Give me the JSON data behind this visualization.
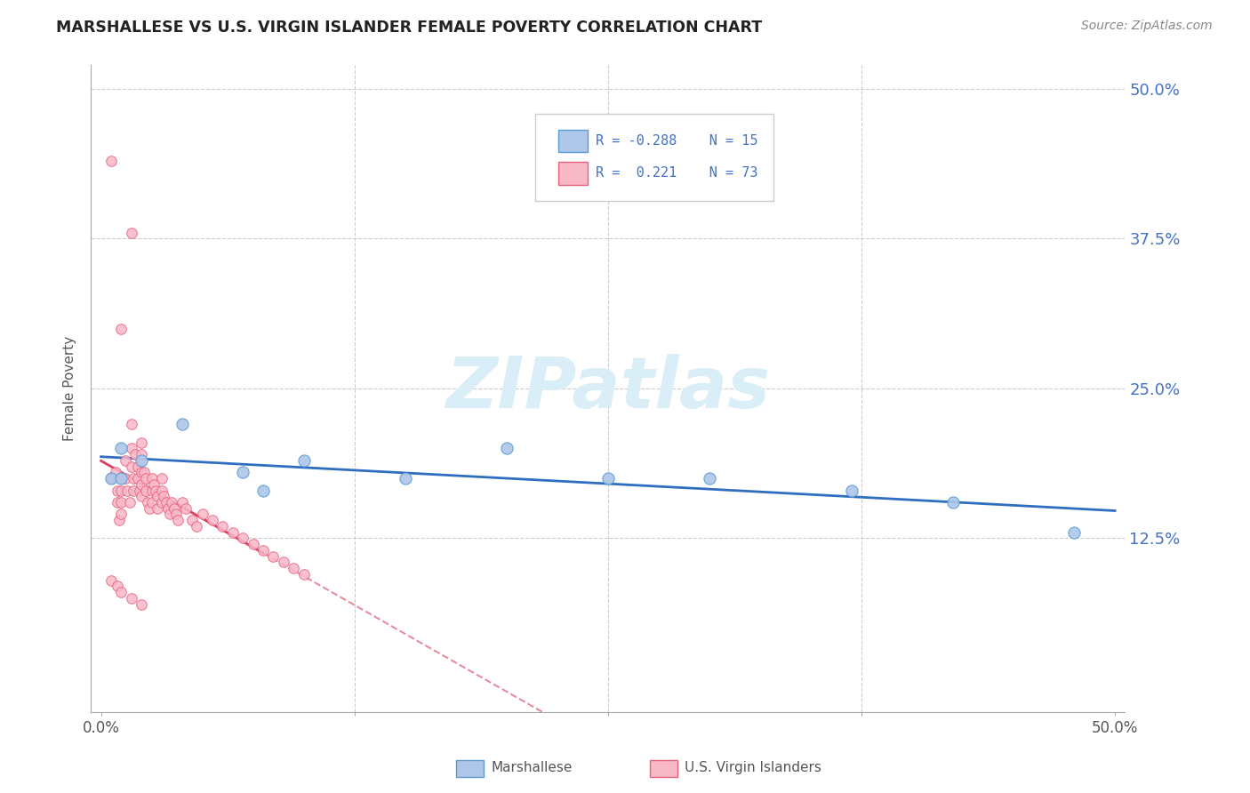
{
  "title": "MARSHALLESE VS U.S. VIRGIN ISLANDER FEMALE POVERTY CORRELATION CHART",
  "source": "Source: ZipAtlas.com",
  "ylabel": "Female Poverty",
  "right_yticklabels": [
    "12.5%",
    "25.0%",
    "37.5%",
    "50.0%"
  ],
  "right_yticks": [
    0.125,
    0.25,
    0.375,
    0.5
  ],
  "xlim": [
    0.0,
    0.5
  ],
  "ylim": [
    0.0,
    0.5
  ],
  "marshallese_color": "#aec6e8",
  "marshallese_edge": "#5b9bd5",
  "virgin_islander_color": "#f7b8c8",
  "virgin_islander_edge": "#e8607a",
  "trend_blue": "#2e6dbf",
  "trend_pink": "#d94060",
  "watermark_color": "#daeef8",
  "title_color": "#222222",
  "source_color": "#888888",
  "axis_color": "#aaaaaa",
  "grid_color": "#cccccc",
  "legend_text_color": "#4472c4",
  "bottom_legend_color": "#555555",
  "marshallese_x": [
    0.005,
    0.01,
    0.01,
    0.02,
    0.04,
    0.07,
    0.08,
    0.1,
    0.15,
    0.2,
    0.25,
    0.3,
    0.37,
    0.42,
    0.48
  ],
  "marshallese_y": [
    0.175,
    0.2,
    0.175,
    0.19,
    0.22,
    0.18,
    0.165,
    0.19,
    0.175,
    0.2,
    0.175,
    0.175,
    0.165,
    0.155,
    0.13
  ],
  "virgin_islander_x": [
    0.005,
    0.005,
    0.007,
    0.008,
    0.008,
    0.009,
    0.01,
    0.01,
    0.01,
    0.01,
    0.01,
    0.012,
    0.012,
    0.013,
    0.014,
    0.015,
    0.015,
    0.015,
    0.015,
    0.016,
    0.016,
    0.017,
    0.018,
    0.018,
    0.019,
    0.02,
    0.02,
    0.02,
    0.02,
    0.02,
    0.021,
    0.022,
    0.022,
    0.023,
    0.024,
    0.025,
    0.025,
    0.025,
    0.026,
    0.027,
    0.028,
    0.028,
    0.03,
    0.03,
    0.03,
    0.031,
    0.032,
    0.033,
    0.034,
    0.035,
    0.036,
    0.037,
    0.038,
    0.04,
    0.042,
    0.045,
    0.047,
    0.05,
    0.055,
    0.06,
    0.065,
    0.07,
    0.075,
    0.08,
    0.085,
    0.09,
    0.095,
    0.1,
    0.005,
    0.008,
    0.01,
    0.015,
    0.02
  ],
  "virgin_islander_y": [
    0.44,
    0.175,
    0.18,
    0.155,
    0.165,
    0.14,
    0.3,
    0.175,
    0.165,
    0.155,
    0.145,
    0.19,
    0.175,
    0.165,
    0.155,
    0.38,
    0.22,
    0.2,
    0.185,
    0.175,
    0.165,
    0.195,
    0.185,
    0.175,
    0.165,
    0.205,
    0.195,
    0.18,
    0.17,
    0.16,
    0.18,
    0.175,
    0.165,
    0.155,
    0.15,
    0.175,
    0.165,
    0.155,
    0.17,
    0.165,
    0.16,
    0.15,
    0.175,
    0.165,
    0.155,
    0.16,
    0.155,
    0.15,
    0.145,
    0.155,
    0.15,
    0.145,
    0.14,
    0.155,
    0.15,
    0.14,
    0.135,
    0.145,
    0.14,
    0.135,
    0.13,
    0.125,
    0.12,
    0.115,
    0.11,
    0.105,
    0.1,
    0.095,
    0.09,
    0.085,
    0.08,
    0.075,
    0.07
  ]
}
